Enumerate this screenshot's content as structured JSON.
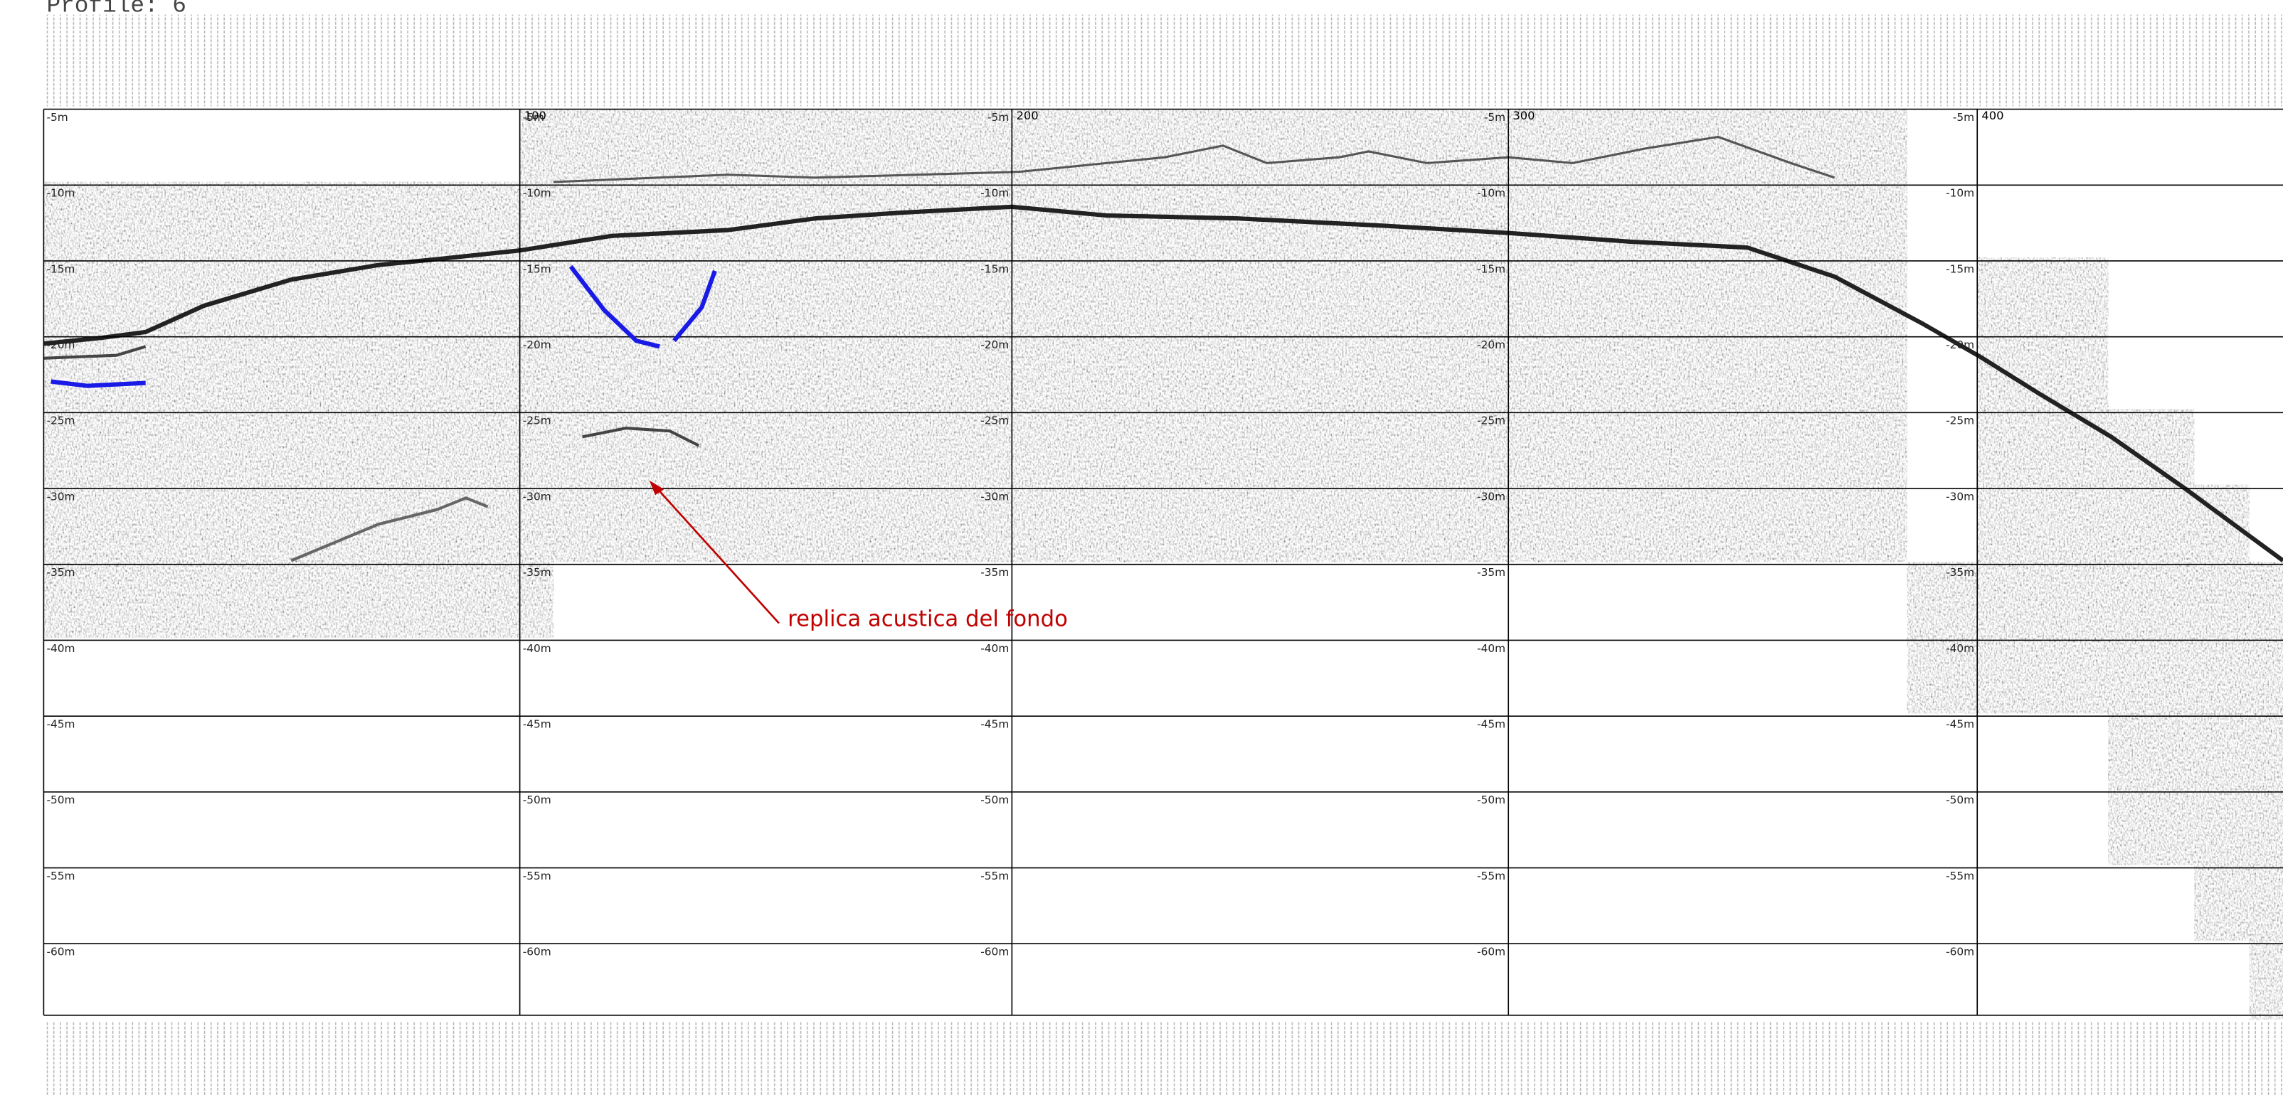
{
  "header": {
    "title": "Profile: 6"
  },
  "grid": {
    "depth_labels": [
      "-5m",
      "-10m",
      "-15m",
      "-20m",
      "-25m",
      "-30m",
      "-35m",
      "-40m",
      "-45m",
      "-50m",
      "-55m",
      "-60m"
    ],
    "distance_labels": [
      "100",
      "200",
      "300",
      "400"
    ]
  },
  "annotation": {
    "text": "replica acustica del fondo"
  }
}
